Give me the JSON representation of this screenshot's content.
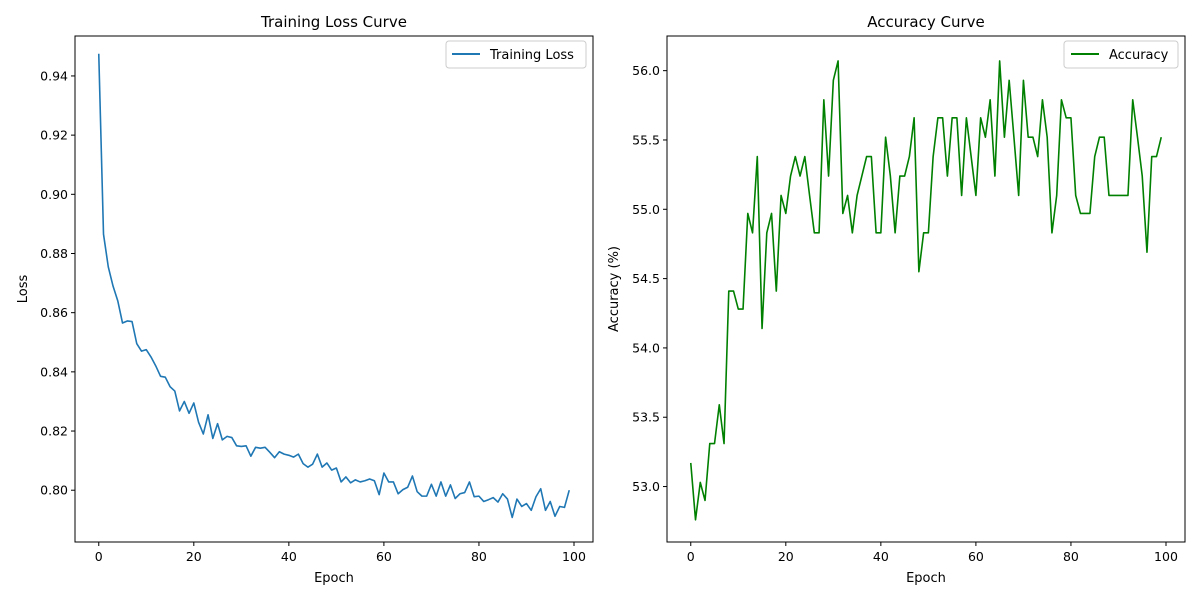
{
  "chart_data": [
    {
      "type": "line",
      "title": "Training Loss Curve",
      "xlabel": "Epoch",
      "ylabel": "Loss",
      "xlim": [
        -5,
        104
      ],
      "ylim": [
        0.7825,
        0.9535
      ],
      "xticks": [
        0,
        20,
        40,
        60,
        80,
        100
      ],
      "xtick_labels": [
        "0",
        "20",
        "40",
        "60",
        "80",
        "100"
      ],
      "yticks": [
        0.8,
        0.82,
        0.84,
        0.86,
        0.88,
        0.9,
        0.92,
        0.94
      ],
      "ytick_labels": [
        "0.80",
        "0.82",
        "0.84",
        "0.86",
        "0.88",
        "0.90",
        "0.92",
        "0.94"
      ],
      "grid": false,
      "legend_position": "top-right",
      "series": [
        {
          "name": "Training Loss",
          "color": "#1f77b4",
          "x_start": 0,
          "values": [
            0.9475,
            0.8865,
            0.8755,
            0.869,
            0.864,
            0.8565,
            0.8572,
            0.857,
            0.8495,
            0.847,
            0.8475,
            0.845,
            0.842,
            0.8385,
            0.8382,
            0.835,
            0.8335,
            0.8268,
            0.83,
            0.826,
            0.8295,
            0.823,
            0.819,
            0.8255,
            0.8175,
            0.8225,
            0.817,
            0.8182,
            0.8178,
            0.815,
            0.8148,
            0.815,
            0.8115,
            0.8145,
            0.8142,
            0.8145,
            0.8128,
            0.811,
            0.813,
            0.8122,
            0.8118,
            0.8112,
            0.8122,
            0.809,
            0.8078,
            0.8088,
            0.8122,
            0.8078,
            0.8092,
            0.8068,
            0.8075,
            0.8028,
            0.8045,
            0.8025,
            0.8035,
            0.8028,
            0.8032,
            0.8038,
            0.8032,
            0.7985,
            0.8058,
            0.8028,
            0.8028,
            0.7988,
            0.8002,
            0.801,
            0.8048,
            0.7995,
            0.798,
            0.798,
            0.802,
            0.798,
            0.8028,
            0.798,
            0.8018,
            0.7972,
            0.7988,
            0.7992,
            0.8028,
            0.7978,
            0.798,
            0.7962,
            0.7968,
            0.7975,
            0.796,
            0.7988,
            0.797,
            0.7908,
            0.797,
            0.7945,
            0.7955,
            0.7932,
            0.7978,
            0.8005,
            0.7932,
            0.7962,
            0.7912,
            0.7945,
            0.7942,
            0.8
          ]
        }
      ]
    },
    {
      "type": "line",
      "title": "Accuracy Curve",
      "xlabel": "Epoch",
      "ylabel": "Accuracy (%)",
      "xlim": [
        -5,
        104
      ],
      "ylim": [
        52.6,
        56.25
      ],
      "xticks": [
        0,
        20,
        40,
        60,
        80,
        100
      ],
      "xtick_labels": [
        "0",
        "20",
        "40",
        "60",
        "80",
        "100"
      ],
      "yticks": [
        53.0,
        53.5,
        54.0,
        54.5,
        55.0,
        55.5,
        56.0
      ],
      "ytick_labels": [
        "53.0",
        "53.5",
        "54.0",
        "54.5",
        "55.0",
        "55.5",
        "56.0"
      ],
      "grid": false,
      "legend_position": "top-right",
      "series": [
        {
          "name": "Accuracy",
          "color": "#008000",
          "x_start": 0,
          "values": [
            53.17,
            52.76,
            53.03,
            52.9,
            53.31,
            53.31,
            53.59,
            53.31,
            54.41,
            54.41,
            54.28,
            54.28,
            54.97,
            54.83,
            55.38,
            54.14,
            54.83,
            54.97,
            54.41,
            55.1,
            54.97,
            55.24,
            55.38,
            55.24,
            55.38,
            55.1,
            54.83,
            54.83,
            55.79,
            55.24,
            55.93,
            56.07,
            54.97,
            55.1,
            54.83,
            55.1,
            55.24,
            55.38,
            55.38,
            54.83,
            54.83,
            55.52,
            55.24,
            54.83,
            55.24,
            55.24,
            55.38,
            55.66,
            54.55,
            54.83,
            54.83,
            55.38,
            55.66,
            55.66,
            55.24,
            55.66,
            55.66,
            55.1,
            55.66,
            55.38,
            55.1,
            55.66,
            55.52,
            55.79,
            55.24,
            56.07,
            55.52,
            55.93,
            55.52,
            55.1,
            55.93,
            55.52,
            55.52,
            55.38,
            55.79,
            55.52,
            54.83,
            55.1,
            55.79,
            55.66,
            55.66,
            55.1,
            54.97,
            54.97,
            54.97,
            55.38,
            55.52,
            55.52,
            55.1,
            55.1,
            55.1,
            55.1,
            55.1,
            55.79,
            55.52,
            55.24,
            54.69,
            55.38,
            55.38,
            55.52
          ]
        }
      ]
    }
  ]
}
